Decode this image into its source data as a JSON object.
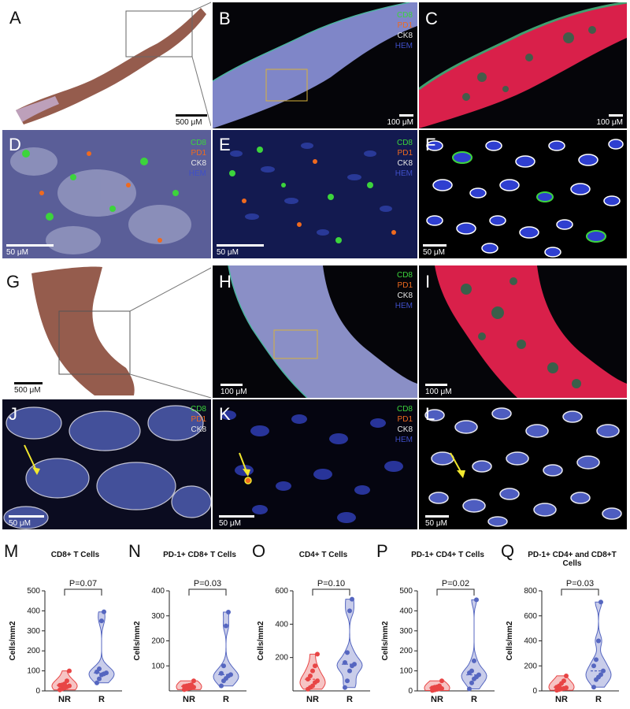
{
  "panels": {
    "A": {
      "label": "A",
      "scale": "500 μM"
    },
    "B": {
      "label": "B",
      "scale": "100 μM",
      "legend": [
        "CD8",
        "PD1",
        "CK8",
        "HEM"
      ]
    },
    "C": {
      "label": "C",
      "scale": "100 μM"
    },
    "D": {
      "label": "D",
      "scale": "50 μM",
      "legend": [
        "CD8",
        "PD1",
        "CK8",
        "HEM"
      ]
    },
    "E": {
      "label": "E",
      "scale": "50 μM",
      "legend": [
        "CD8",
        "PD1",
        "CK8",
        "HEM"
      ]
    },
    "F": {
      "label": "F",
      "scale": "50 μM"
    },
    "G": {
      "label": "G",
      "scale": "500 μM"
    },
    "H": {
      "label": "H",
      "scale": "100 μM",
      "legend": [
        "CD8",
        "PD1",
        "CK8",
        "HEM"
      ]
    },
    "I": {
      "label": "I",
      "scale": "100 μM"
    },
    "J": {
      "label": "J",
      "scale": "50 μM",
      "legend": [
        "CD8",
        "PD1",
        "CK8"
      ]
    },
    "K": {
      "label": "K",
      "scale": "50 μM",
      "legend": [
        "CD8",
        "PD1",
        "CK8",
        "HEM"
      ]
    },
    "L": {
      "label": "L",
      "scale": "50 μM"
    }
  },
  "legend_colors": {
    "CD8": "#3cd43c",
    "PD1": "#f06a1e",
    "CK8": "#e8e8e8",
    "HEM": "#3f4fc8"
  },
  "colors": {
    "nr": "#e84545",
    "r": "#5566c0",
    "nr_fill": "#f6c4c4",
    "r_fill": "#c9cdea"
  },
  "chart_data": [
    {
      "type": "violin",
      "panel": "M",
      "title": "CD8+ T Cells",
      "ylabel": "Cells/mm2",
      "categories": [
        "NR",
        "R"
      ],
      "ylim": [
        0,
        500
      ],
      "yticks": [
        0,
        100,
        200,
        300,
        400,
        500
      ],
      "pvalue": "P=0.07",
      "values": {
        "NR": [
          5,
          10,
          15,
          20,
          25,
          28,
          30,
          35,
          50,
          100
        ],
        "R": [
          40,
          60,
          80,
          85,
          90,
          95,
          110,
          350,
          395
        ]
      }
    },
    {
      "type": "violin",
      "panel": "N",
      "title": "PD-1+ CD8+ T Cells",
      "ylabel": "Cells/mm2",
      "categories": [
        "NR",
        "R"
      ],
      "ylim": [
        0,
        400
      ],
      "yticks": [
        100,
        200,
        300,
        400
      ],
      "pvalue": "P=0.03",
      "values": {
        "NR": [
          5,
          8,
          10,
          12,
          15,
          18,
          20,
          22,
          25,
          40
        ],
        "R": [
          20,
          40,
          50,
          60,
          65,
          70,
          100,
          260,
          315
        ]
      }
    },
    {
      "type": "violin",
      "panel": "O",
      "title": "CD4+ T Cells",
      "ylabel": "Cells/mm2",
      "categories": [
        "NR",
        "R"
      ],
      "ylim": [
        0,
        600
      ],
      "yticks": [
        200,
        400,
        600
      ],
      "pvalue": "P=0.10",
      "values": {
        "NR": [
          10,
          20,
          30,
          50,
          60,
          70,
          90,
          120,
          150,
          220
        ],
        "R": [
          20,
          60,
          120,
          150,
          160,
          170,
          230,
          480,
          550
        ]
      }
    },
    {
      "type": "violin",
      "panel": "P",
      "title": "PD-1+ CD4+ T Cells",
      "ylabel": "Cells/mm2",
      "categories": [
        "NR",
        "R"
      ],
      "ylim": [
        0,
        500
      ],
      "yticks": [
        0,
        100,
        200,
        300,
        400,
        500
      ],
      "pvalue": "P=0.02",
      "values": {
        "NR": [
          2,
          5,
          8,
          10,
          12,
          15,
          18,
          20,
          25,
          50
        ],
        "R": [
          10,
          40,
          60,
          70,
          80,
          90,
          100,
          150,
          455
        ]
      }
    },
    {
      "type": "violin",
      "panel": "Q",
      "title": "PD-1+ CD4+ and CD8+T Cells",
      "ylabel": "Cells/mm2",
      "categories": [
        "NR",
        "R"
      ],
      "ylim": [
        0,
        800
      ],
      "yticks": [
        0,
        200,
        400,
        600,
        800
      ],
      "pvalue": "P=0.03",
      "values": {
        "NR": [
          5,
          10,
          15,
          20,
          25,
          30,
          40,
          60,
          80,
          120
        ],
        "R": [
          30,
          90,
          110,
          130,
          160,
          200,
          250,
          400,
          710
        ]
      }
    }
  ]
}
